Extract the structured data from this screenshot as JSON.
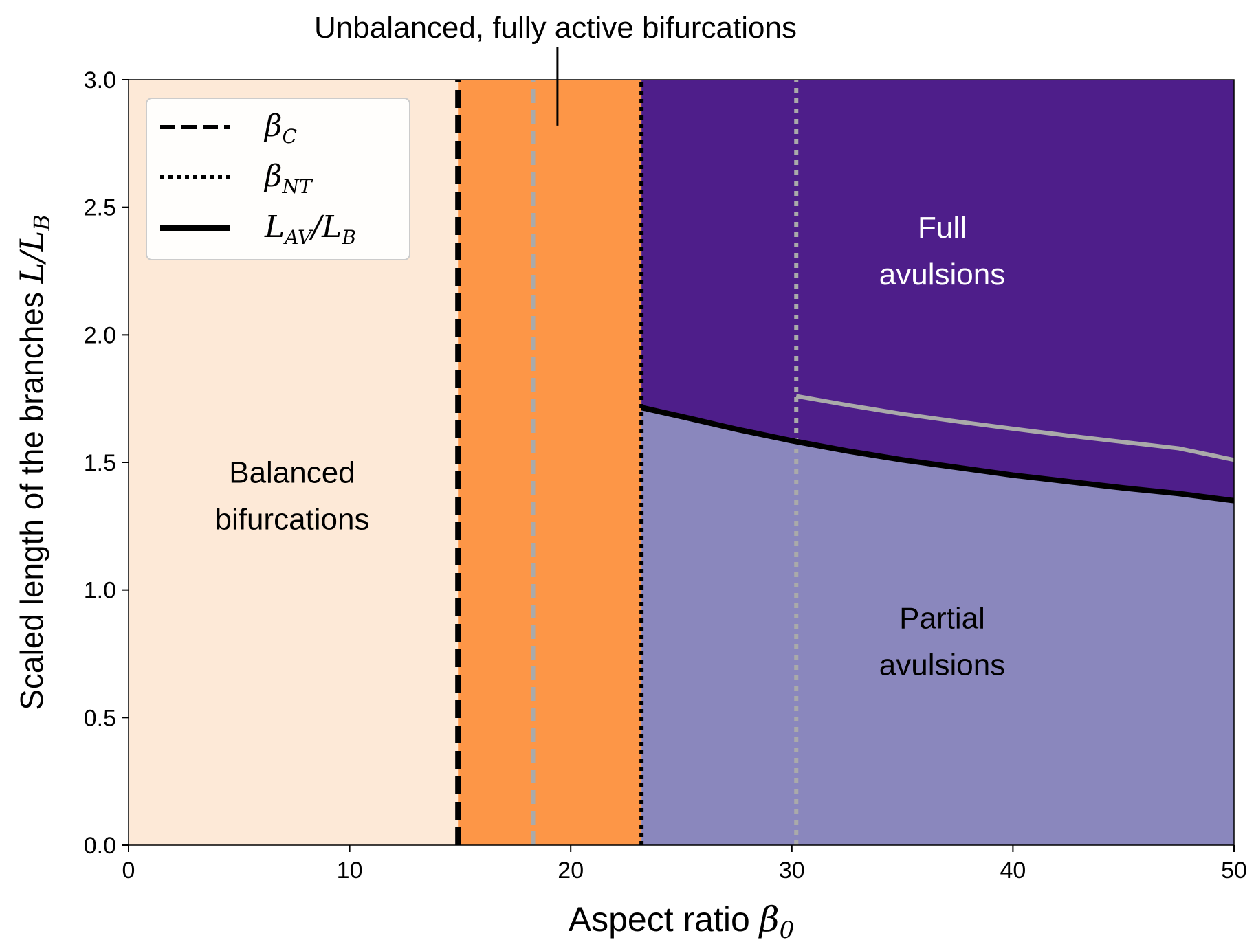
{
  "chart_data": {
    "type": "area",
    "title": "Unbalanced, fully active bifurcations",
    "xlabel": {
      "text": "Aspect ratio ",
      "math": "β",
      "sub": "0"
    },
    "ylabel": {
      "text": "Scaled length of the branches ",
      "math_num": "L",
      "math_slash": "/",
      "math_den": "L",
      "den_sub": "B"
    },
    "xlim": [
      0,
      50
    ],
    "ylim": [
      0,
      3
    ],
    "xticks": [
      0,
      10,
      20,
      30,
      40,
      50
    ],
    "xtick_labels": [
      "0",
      "10",
      "20",
      "30",
      "40",
      "50"
    ],
    "yticks": [
      0,
      0.5,
      1,
      1.5,
      2,
      2.5,
      3
    ],
    "ytick_labels": [
      "0.0",
      "0.5",
      "1.0",
      "1.5",
      "2.0",
      "2.5",
      "3.0"
    ],
    "grid": false,
    "legend_position": "top-left",
    "regions": [
      {
        "label_lines": [
          "Balanced",
          "bifurcations"
        ],
        "x_range": [
          0,
          14.9
        ],
        "y_range": [
          0,
          3
        ],
        "color": "#fde9d7",
        "text_color": "#000000",
        "label_at": [
          7.4,
          1.42
        ]
      },
      {
        "label_lines": [],
        "x_range": [
          14.9,
          23.2
        ],
        "y_range": [
          0,
          3
        ],
        "color": "#fd9647"
      },
      {
        "label_lines": [
          "Full",
          "avulsions"
        ],
        "bounded_by": "L_AV/L_B curve (above)",
        "color": "#4e1e8a",
        "text_color": "#ffffff",
        "label_at": [
          36.8,
          2.38
        ]
      },
      {
        "label_lines": [
          "Partial",
          "avulsions"
        ],
        "bounded_by": "L_AV/L_B curve (below)",
        "color": "#8a87bd",
        "text_color": "#000000",
        "label_at": [
          36.8,
          0.85
        ]
      }
    ],
    "series": [
      {
        "name_math": "β",
        "name_sub": "C",
        "style": "dashed",
        "color": "#000000",
        "x": [
          14.9,
          14.9
        ],
        "y": [
          0,
          3
        ]
      },
      {
        "name_math": "β",
        "name_sub": "NT",
        "style": "dotted",
        "color": "#000000",
        "x": [
          23.2,
          23.2
        ],
        "y": [
          0,
          3
        ]
      },
      {
        "name_math": "L",
        "name_sub": "AV",
        "name_tail_math": "/L",
        "name_tail_sub": "B",
        "style": "solid",
        "color": "#000000",
        "x": [
          23.2,
          25,
          27.5,
          30,
          32.5,
          35,
          37.5,
          40,
          42.5,
          45,
          47.5,
          50
        ],
        "y": [
          1.715,
          1.68,
          1.63,
          1.585,
          1.545,
          1.51,
          1.48,
          1.45,
          1.425,
          1.4,
          1.378,
          1.35
        ]
      },
      {
        "style": "dashed",
        "color": "#aaaaaa",
        "x": [
          18.3,
          18.3
        ],
        "y": [
          0,
          3
        ]
      },
      {
        "style": "dotted",
        "color": "#aaaaaa",
        "x": [
          30.2,
          30.2
        ],
        "y": [
          0,
          3
        ]
      },
      {
        "style": "solid",
        "color": "#aaaaaa",
        "x": [
          30.2,
          32.5,
          35,
          37.5,
          40,
          42.5,
          45,
          47.5,
          50
        ],
        "y": [
          1.76,
          1.725,
          1.69,
          1.66,
          1.632,
          1.605,
          1.58,
          1.555,
          1.51
        ]
      }
    ],
    "annotation_pointer": {
      "x": 19.4,
      "y_from": 3.0,
      "y_to": 2.82
    }
  }
}
